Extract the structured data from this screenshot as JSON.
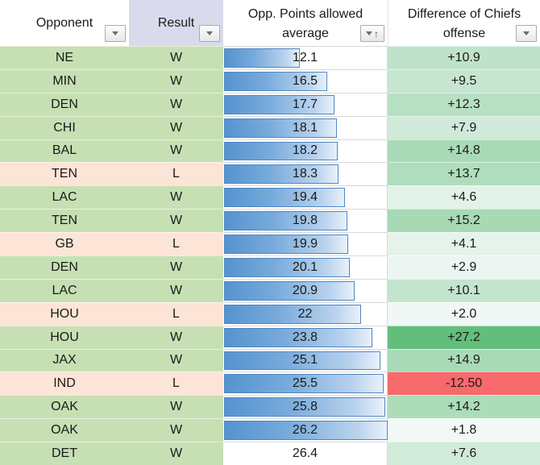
{
  "header": {
    "columns": [
      {
        "id": "opponent",
        "line1": "Opponent",
        "line2": "",
        "filter_icon": "dropdown-caret"
      },
      {
        "id": "result",
        "line1": "Result",
        "line2": "",
        "filter_icon": "dropdown-caret"
      },
      {
        "id": "points",
        "line1": "Opp. Points allowed",
        "line2": "average",
        "filter_icon": "sorted-ascending"
      },
      {
        "id": "difference",
        "line1": "Difference of Chiefs",
        "line2": "offense",
        "filter_icon": "dropdown-caret"
      }
    ]
  },
  "icons": {
    "sort_ascending_arrow": "↑"
  },
  "colors": {
    "win_bg": "#C6E0B4",
    "loss_bg": "#FCE4D6",
    "result_header_bg": "#D9DBEC",
    "bar_border": "#4E87C5",
    "bar_fill_start": "#5593CF",
    "bar_fill_end": "#E9F1FA",
    "scale_negative": "#F8696B",
    "scale_neutral": "#FCFCFF",
    "scale_positive": "#63BE7B"
  },
  "bar_scale": {
    "min": 0,
    "max": 26.2
  },
  "diff_scale": {
    "min": -12.5,
    "max": 27.2
  },
  "rows": [
    {
      "opponent": "NE",
      "result": "W",
      "points": "12.1",
      "points_value": 12.1,
      "has_bar": true,
      "diff": "+10.9",
      "diff_value": 10.9
    },
    {
      "opponent": "MIN",
      "result": "W",
      "points": "16.5",
      "points_value": 16.5,
      "has_bar": true,
      "diff": "+9.5",
      "diff_value": 9.5
    },
    {
      "opponent": "DEN",
      "result": "W",
      "points": "17.7",
      "points_value": 17.7,
      "has_bar": true,
      "diff": "+12.3",
      "diff_value": 12.3
    },
    {
      "opponent": "CHI",
      "result": "W",
      "points": "18.1",
      "points_value": 18.1,
      "has_bar": true,
      "diff": "+7.9",
      "diff_value": 7.9
    },
    {
      "opponent": "BAL",
      "result": "W",
      "points": "18.2",
      "points_value": 18.2,
      "has_bar": true,
      "diff": "+14.8",
      "diff_value": 14.8
    },
    {
      "opponent": "TEN",
      "result": "L",
      "points": "18.3",
      "points_value": 18.3,
      "has_bar": true,
      "diff": "+13.7",
      "diff_value": 13.7
    },
    {
      "opponent": "LAC",
      "result": "W",
      "points": "19.4",
      "points_value": 19.4,
      "has_bar": true,
      "diff": "+4.6",
      "diff_value": 4.6
    },
    {
      "opponent": "TEN",
      "result": "W",
      "points": "19.8",
      "points_value": 19.8,
      "has_bar": true,
      "diff": "+15.2",
      "diff_value": 15.2
    },
    {
      "opponent": "GB",
      "result": "L",
      "points": "19.9",
      "points_value": 19.9,
      "has_bar": true,
      "diff": "+4.1",
      "diff_value": 4.1
    },
    {
      "opponent": "DEN",
      "result": "W",
      "points": "20.1",
      "points_value": 20.1,
      "has_bar": true,
      "diff": "+2.9",
      "diff_value": 2.9
    },
    {
      "opponent": "LAC",
      "result": "W",
      "points": "20.9",
      "points_value": 20.9,
      "has_bar": true,
      "diff": "+10.1",
      "diff_value": 10.1
    },
    {
      "opponent": "HOU",
      "result": "L",
      "points": "22",
      "points_value": 22,
      "has_bar": true,
      "diff": "+2.0",
      "diff_value": 2.0
    },
    {
      "opponent": "HOU",
      "result": "W",
      "points": "23.8",
      "points_value": 23.8,
      "has_bar": true,
      "diff": "+27.2",
      "diff_value": 27.2
    },
    {
      "opponent": "JAX",
      "result": "W",
      "points": "25.1",
      "points_value": 25.1,
      "has_bar": true,
      "diff": "+14.9",
      "diff_value": 14.9
    },
    {
      "opponent": "IND",
      "result": "L",
      "points": "25.5",
      "points_value": 25.5,
      "has_bar": true,
      "diff": "-12.50",
      "diff_value": -12.5
    },
    {
      "opponent": "OAK",
      "result": "W",
      "points": "25.8",
      "points_value": 25.8,
      "has_bar": true,
      "diff": "+14.2",
      "diff_value": 14.2
    },
    {
      "opponent": "OAK",
      "result": "W",
      "points": "26.2",
      "points_value": 26.2,
      "has_bar": true,
      "diff": "+1.8",
      "diff_value": 1.8
    },
    {
      "opponent": "DET",
      "result": "W",
      "points": "26.4",
      "points_value": 26.4,
      "has_bar": false,
      "diff": "+7.6",
      "diff_value": 7.6
    }
  ]
}
